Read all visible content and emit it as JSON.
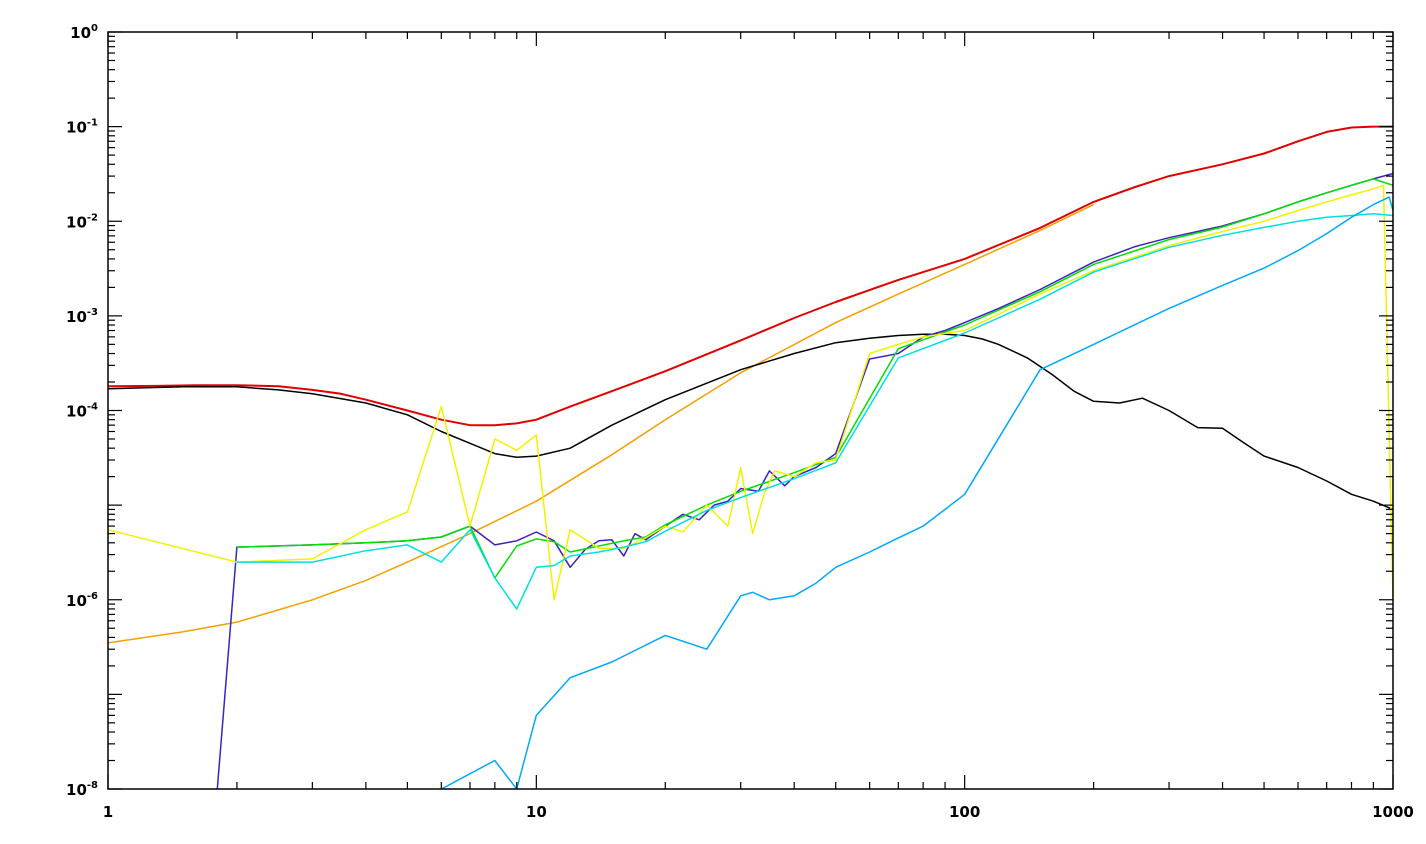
{
  "chart_data": {
    "type": "line",
    "title": "",
    "xlabel": "",
    "ylabel": "",
    "x_scale": "log",
    "y_scale": "log",
    "xlim": [
      1,
      1000
    ],
    "ylim": [
      1e-08,
      1
    ],
    "grid": false,
    "legend": "none",
    "x_ticks": [
      {
        "value": 1,
        "label": "1"
      },
      {
        "value": 10,
        "label": "10"
      },
      {
        "value": 100,
        "label": "100"
      },
      {
        "value": 1000,
        "label": "1000"
      }
    ],
    "y_ticks": [
      {
        "value": 1,
        "base": "10",
        "exp": "0"
      },
      {
        "value": 0.1,
        "base": "10",
        "exp": "-1"
      },
      {
        "value": 0.01,
        "base": "10",
        "exp": "-2"
      },
      {
        "value": 0.001,
        "base": "10",
        "exp": "-3"
      },
      {
        "value": 0.0001,
        "base": "10",
        "exp": "-4"
      },
      {
        "value": 1e-06,
        "base": "10",
        "exp": "-6"
      },
      {
        "value": 1e-08,
        "base": "10",
        "exp": "-8"
      }
    ],
    "series": [
      {
        "color": "#e00000",
        "x": [
          1,
          1.3,
          1.6,
          2,
          2.5,
          3,
          3.5,
          4,
          5,
          6,
          7,
          8,
          9,
          10,
          12,
          15,
          20,
          30,
          40,
          50,
          70,
          100,
          150,
          200,
          250,
          300,
          400,
          500,
          600,
          700,
          800,
          900,
          1000
        ],
        "y": [
          0.00018,
          0.000182,
          0.000185,
          0.000185,
          0.00018,
          0.000165,
          0.00015,
          0.00013,
          0.0001,
          8e-05,
          7e-05,
          7e-05,
          7.3e-05,
          8e-05,
          0.00011,
          0.00016,
          0.00026,
          0.00055,
          0.00095,
          0.0014,
          0.0024,
          0.004,
          0.0085,
          0.016,
          0.023,
          0.03,
          0.04,
          0.052,
          0.07,
          0.088,
          0.098,
          0.1,
          0.1
        ]
      },
      {
        "color": "#f5a000",
        "x": [
          1,
          1.5,
          2,
          3,
          4,
          5,
          7,
          10,
          15,
          20,
          30,
          50,
          70,
          100,
          150,
          200
        ],
        "y": [
          3.5e-07,
          4.6e-07,
          5.8e-07,
          1e-06,
          1.6e-06,
          2.5e-06,
          5e-06,
          1.1e-05,
          3.4e-05,
          8e-05,
          0.00025,
          0.00085,
          0.0017,
          0.0035,
          0.008,
          0.015
        ]
      },
      {
        "color": "#000000",
        "x": [
          1,
          1.5,
          2,
          2.5,
          3,
          4,
          5,
          6,
          7,
          8,
          9,
          10,
          12,
          15,
          20,
          30,
          40,
          50,
          60,
          70,
          80,
          90,
          100,
          110,
          120,
          140,
          160,
          180,
          200,
          230,
          260,
          300,
          350,
          400,
          450,
          500,
          600,
          700,
          800,
          900,
          1000
        ],
        "y": [
          0.00017,
          0.000178,
          0.000178,
          0.000165,
          0.00015,
          0.00012,
          9e-05,
          6e-05,
          4.5e-05,
          3.5e-05,
          3.2e-05,
          3.3e-05,
          4e-05,
          7e-05,
          0.00013,
          0.00027,
          0.0004,
          0.00052,
          0.00058,
          0.00062,
          0.00064,
          0.00064,
          0.00062,
          0.00057,
          0.0005,
          0.00036,
          0.00024,
          0.00016,
          0.000125,
          0.00012,
          0.000135,
          0.0001,
          6.6e-05,
          6.5e-05,
          4.5e-05,
          3.3e-05,
          2.5e-05,
          1.8e-05,
          1.3e-05,
          1.1e-05,
          9e-06
        ]
      },
      {
        "color": "#4020c0",
        "x": [
          1.8,
          2,
          3,
          4,
          5,
          6,
          7,
          8,
          9,
          10,
          11,
          12,
          13,
          14,
          15,
          16,
          17,
          18,
          20,
          22,
          24,
          26,
          28,
          30,
          33,
          35,
          38,
          40,
          45,
          50,
          60,
          70,
          80,
          90,
          100,
          120,
          150,
          200,
          250,
          300,
          400,
          500,
          600,
          700,
          800,
          900,
          1000
        ],
        "y": [
          1e-08,
          3.6e-06,
          3.8e-06,
          4e-06,
          4.2e-06,
          4.6e-06,
          6e-06,
          3.8e-06,
          4.2e-06,
          5.2e-06,
          4.2e-06,
          2.2e-06,
          3.4e-06,
          4.2e-06,
          4.3e-06,
          2.9e-06,
          5e-06,
          4.3e-06,
          6e-06,
          8e-06,
          7e-06,
          1e-05,
          1.1e-05,
          1.5e-05,
          1.4e-05,
          2.3e-05,
          1.6e-05,
          2e-05,
          2.5e-05,
          3.5e-05,
          0.00035,
          0.0004,
          0.0006,
          0.0007,
          0.00085,
          0.0012,
          0.0019,
          0.0037,
          0.0054,
          0.0067,
          0.0089,
          0.012,
          0.016,
          0.02,
          0.024,
          0.028,
          0.032
        ]
      },
      {
        "color": "#00e000",
        "x": [
          2,
          3,
          4,
          5,
          6,
          7,
          8,
          9,
          10,
          11,
          12,
          14,
          16,
          18,
          20,
          25,
          30,
          40,
          50,
          70,
          100,
          150,
          200,
          300,
          400,
          500,
          600,
          700,
          800,
          900,
          1000
        ],
        "y": [
          3.6e-06,
          3.8e-06,
          4e-06,
          4.2e-06,
          4.6e-06,
          6e-06,
          1.7e-06,
          3.7e-06,
          4.4e-06,
          4.1e-06,
          3.2e-06,
          3.7e-06,
          4.2e-06,
          4.6e-06,
          6.2e-06,
          1e-05,
          1.4e-05,
          2.2e-05,
          3.2e-05,
          0.00045,
          0.0008,
          0.0018,
          0.0035,
          0.0064,
          0.0087,
          0.012,
          0.016,
          0.02,
          0.024,
          0.028,
          0.024
        ]
      },
      {
        "color": "#f2f200",
        "x": [
          1,
          2,
          3,
          4,
          5,
          6,
          7,
          8,
          9,
          10,
          11,
          12,
          14,
          16,
          18,
          20,
          22,
          25,
          28,
          30,
          32,
          34,
          36,
          40,
          45,
          50,
          60,
          70,
          80,
          100,
          150,
          200,
          300,
          400,
          500,
          600,
          700,
          800,
          900,
          950,
          1000
        ],
        "y": [
          5.5e-06,
          2.5e-06,
          2.7e-06,
          5.5e-06,
          8.5e-06,
          0.00011,
          6e-06,
          5e-05,
          3.8e-05,
          5.5e-05,
          1e-06,
          5.5e-06,
          3.5e-06,
          3.5e-06,
          4.5e-06,
          6e-06,
          5.2e-06,
          1e-05,
          6e-06,
          2.5e-05,
          5e-06,
          1.3e-05,
          2.3e-05,
          2e-05,
          2.8e-05,
          3e-05,
          0.0004,
          0.0005,
          0.0006,
          0.0007,
          0.0017,
          0.003,
          0.0055,
          0.0078,
          0.01,
          0.013,
          0.016,
          0.019,
          0.022,
          0.024,
          1e-06
        ]
      },
      {
        "color": "#00e0e0",
        "x": [
          2,
          3,
          4,
          5,
          6,
          7,
          8,
          9,
          10,
          11,
          12,
          14,
          16,
          18,
          20,
          25,
          30,
          40,
          50,
          70,
          100,
          150,
          200,
          300,
          400,
          500,
          600,
          700,
          800,
          900,
          1000
        ],
        "y": [
          2.5e-06,
          2.5e-06,
          3.3e-06,
          3.8e-06,
          2.5e-06,
          5.5e-06,
          1.7e-06,
          8e-07,
          2.2e-06,
          2.3e-06,
          2.9e-06,
          3.2e-06,
          3.6e-06,
          4.1e-06,
          5.3e-06,
          8.8e-06,
          1.2e-05,
          1.9e-05,
          2.8e-05,
          0.00036,
          0.00066,
          0.0015,
          0.0029,
          0.0053,
          0.0071,
          0.0086,
          0.01,
          0.011,
          0.0115,
          0.012,
          0.0115
        ]
      },
      {
        "color": "#00a8ff",
        "x": [
          6,
          8,
          9,
          10,
          12,
          15,
          20,
          25,
          30,
          32,
          35,
          40,
          45,
          50,
          60,
          70,
          80,
          100,
          150,
          200,
          300,
          400,
          500,
          600,
          700,
          800,
          900,
          980,
          1000
        ],
        "y": [
          1e-08,
          2e-08,
          1e-08,
          6e-08,
          1.5e-07,
          2.2e-07,
          4.2e-07,
          3e-07,
          1.1e-06,
          1.2e-06,
          1e-06,
          1.1e-06,
          1.5e-06,
          2.2e-06,
          3.2e-06,
          4.5e-06,
          6e-06,
          1.3e-05,
          0.00027,
          0.0005,
          0.0012,
          0.0021,
          0.0032,
          0.0049,
          0.0074,
          0.011,
          0.015,
          0.018,
          0.013
        ]
      }
    ]
  }
}
